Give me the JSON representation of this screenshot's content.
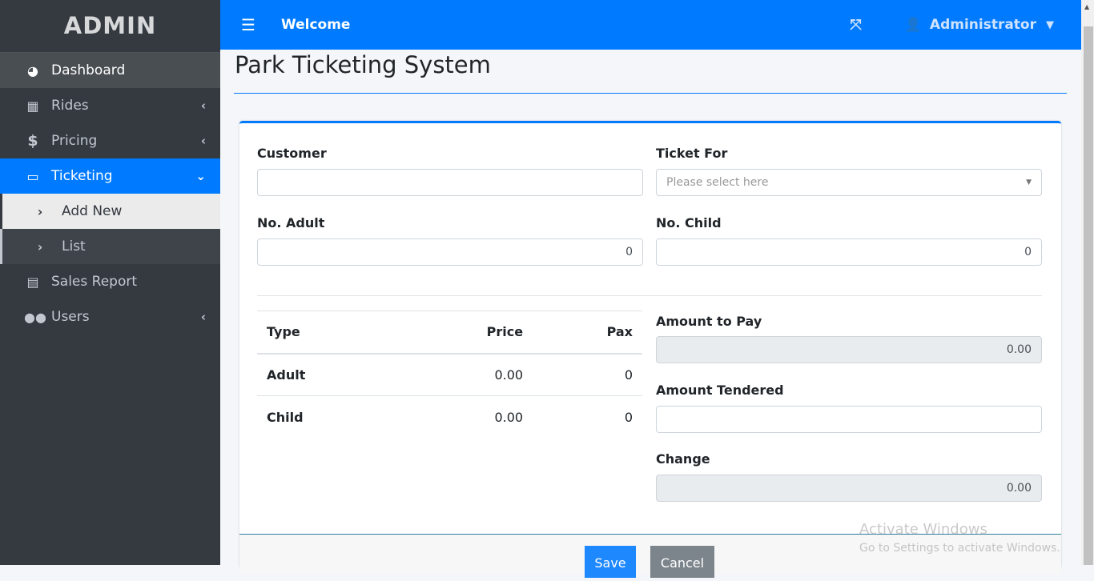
{
  "sidebar": {
    "brand": "ADMIN",
    "items": [
      {
        "label": "Dashboard",
        "icon": "tachometer-icon"
      },
      {
        "label": "Rides",
        "icon": "table-icon"
      },
      {
        "label": "Pricing",
        "icon": "dollar-icon"
      },
      {
        "label": "Ticketing",
        "icon": "ticket-icon"
      },
      {
        "label": "Add New"
      },
      {
        "label": "List"
      },
      {
        "label": "Sales Report",
        "icon": "file-icon"
      },
      {
        "label": "Users",
        "icon": "users-icon"
      }
    ]
  },
  "header": {
    "welcome": "Welcome",
    "user": "Administrator"
  },
  "page": {
    "title": "Park Ticketing System"
  },
  "form": {
    "customer_label": "Customer",
    "customer_value": "",
    "ticket_for_label": "Ticket For",
    "ticket_for_placeholder": "Please select here",
    "adult_label": "No. Adult",
    "adult_value": "0",
    "child_label": "No. Child",
    "child_value": "0",
    "amount_to_pay_label": "Amount to Pay",
    "amount_to_pay": "0.00",
    "tendered_label": "Amount Tendered",
    "tendered_value": "",
    "change_label": "Change",
    "change_value": "0.00"
  },
  "table": {
    "headers": [
      "Type",
      "Price",
      "Pax"
    ],
    "rows": [
      [
        "Adult",
        "0.00",
        "0"
      ],
      [
        "Child",
        "0.00",
        "0"
      ]
    ]
  },
  "buttons": {
    "save": "Save",
    "cancel": "Cancel"
  },
  "watermark": {
    "line1": "Activate Windows",
    "line2": "Go to Settings to activate Windows."
  },
  "colors": {
    "primary": "#007bff",
    "sidebar": "#343a40"
  }
}
